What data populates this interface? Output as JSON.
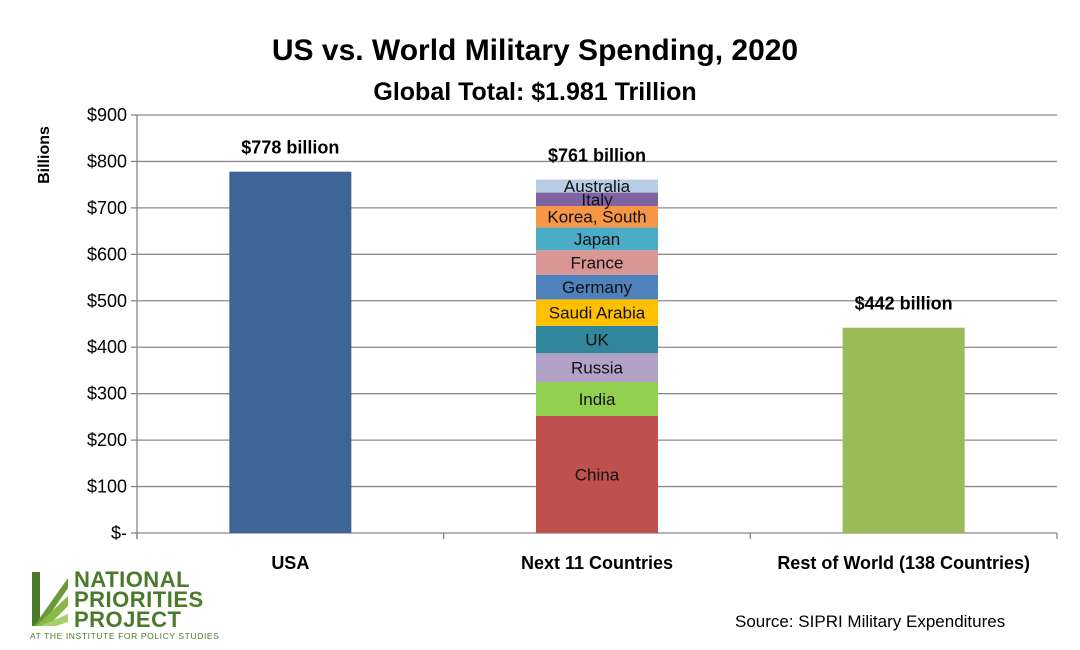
{
  "chart_data": {
    "type": "bar",
    "title": "US vs. World Military Spending, 2020",
    "subtitle": "Global Total: $1.981 Trillion",
    "ylabel": "Billions",
    "xlabel": "",
    "ylim": [
      0,
      900
    ],
    "yticks": [
      0,
      100,
      200,
      300,
      400,
      500,
      600,
      700,
      800,
      900
    ],
    "ytick_labels": [
      "$-",
      "$100",
      "$200",
      "$300",
      "$400",
      "$500",
      "$600",
      "$700",
      "$800",
      "$900"
    ],
    "grid": true,
    "categories": [
      "USA",
      "Next 11 Countries",
      "Rest of World (138 Countries)"
    ],
    "bars": [
      {
        "category": "USA",
        "value": 778,
        "label": "$778 billion",
        "color": "#3F6597"
      },
      {
        "category": "Next 11 Countries",
        "value": 761,
        "label": "$761 billion",
        "stacked": true
      },
      {
        "category": "Rest of World (138 Countries)",
        "value": 442,
        "label": "$442 billion",
        "color": "#9BBB59"
      }
    ],
    "stack": [
      {
        "name": "China",
        "value": 252,
        "color": "#C0504D"
      },
      {
        "name": "India",
        "value": 73,
        "color": "#92D050"
      },
      {
        "name": "Russia",
        "value": 62,
        "color": "#B3A2C7"
      },
      {
        "name": "UK",
        "value": 59,
        "color": "#31869B"
      },
      {
        "name": "Saudi Arabia",
        "value": 57,
        "color": "#FFC000"
      },
      {
        "name": "Germany",
        "value": 53,
        "color": "#4F81BD"
      },
      {
        "name": "France",
        "value": 53,
        "color": "#DA9694"
      },
      {
        "name": "Japan",
        "value": 49,
        "color": "#4BACC6"
      },
      {
        "name": "Korea, South",
        "value": 46,
        "color": "#F79646"
      },
      {
        "name": "Italy",
        "value": 29,
        "color": "#8064A2"
      },
      {
        "name": "Australia",
        "value": 28,
        "color": "#B8CCE4"
      }
    ]
  },
  "source": "Source: SIPRI Military Expenditures",
  "logo": {
    "line1": "NATIONAL",
    "line2": "PRIORITIES",
    "line3": "PROJECT",
    "sub": "AT THE INSTITUTE FOR POLICY STUDIES",
    "color": "#4A7A2A"
  }
}
